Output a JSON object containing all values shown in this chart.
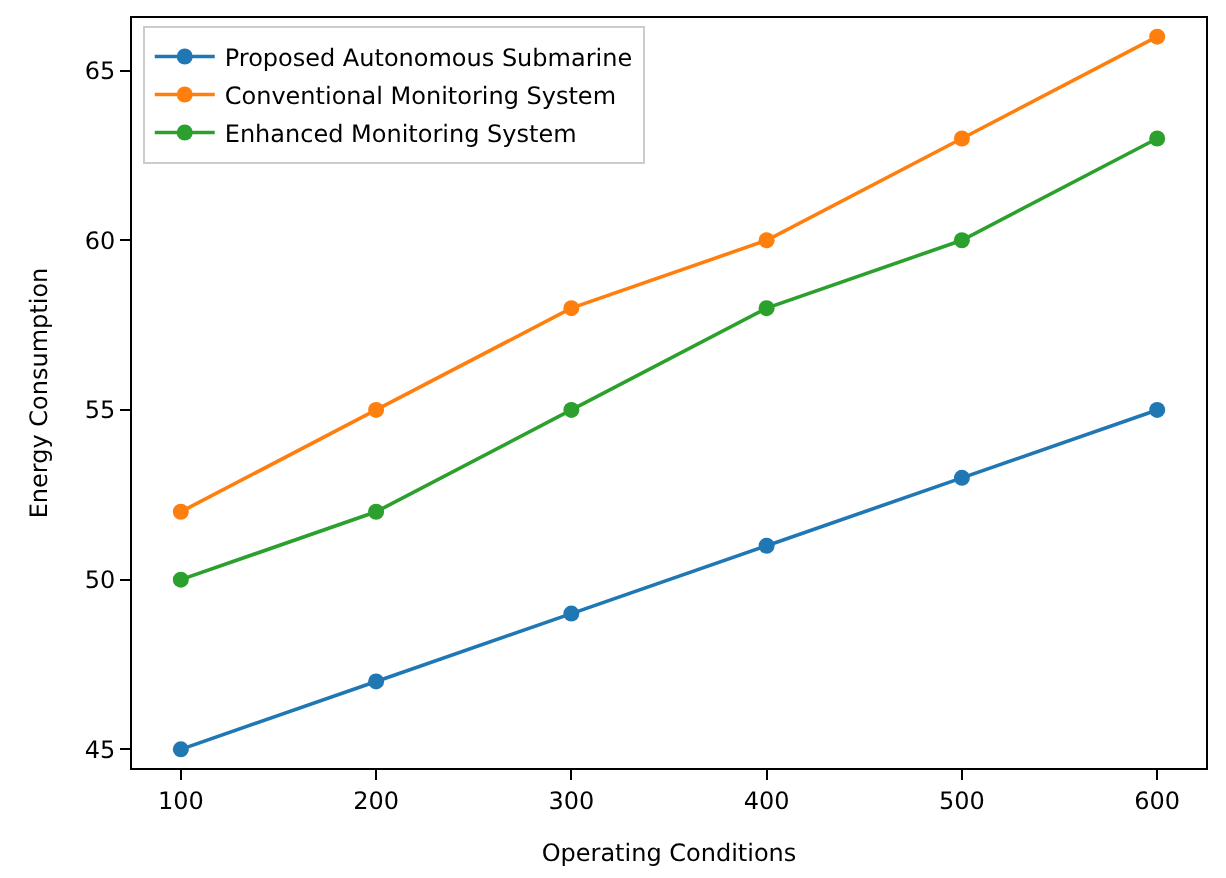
{
  "chart_data": {
    "type": "line",
    "xlabel": "Operating Conditions",
    "ylabel": "Energy Consumption",
    "x": [
      100,
      200,
      300,
      400,
      500,
      600
    ],
    "series": [
      {
        "name": "Proposed Autonomous Submarine",
        "color": "#1f77b4",
        "values": [
          45,
          47,
          49,
          51,
          53,
          55
        ]
      },
      {
        "name": "Conventional Monitoring System",
        "color": "#ff7f0e",
        "values": [
          52,
          55,
          58,
          60,
          63,
          66
        ]
      },
      {
        "name": "Enhanced Monitoring System",
        "color": "#2ca02c",
        "values": [
          50,
          52,
          55,
          58,
          60,
          63
        ]
      }
    ],
    "xlim": [
      75,
      625
    ],
    "ylim": [
      44.45,
      66.55
    ],
    "xticks": [
      100,
      200,
      300,
      400,
      500,
      600
    ],
    "yticks": [
      45,
      50,
      55,
      60,
      65
    ],
    "legend": "top left",
    "marker": "circle",
    "line_style": "solid"
  }
}
